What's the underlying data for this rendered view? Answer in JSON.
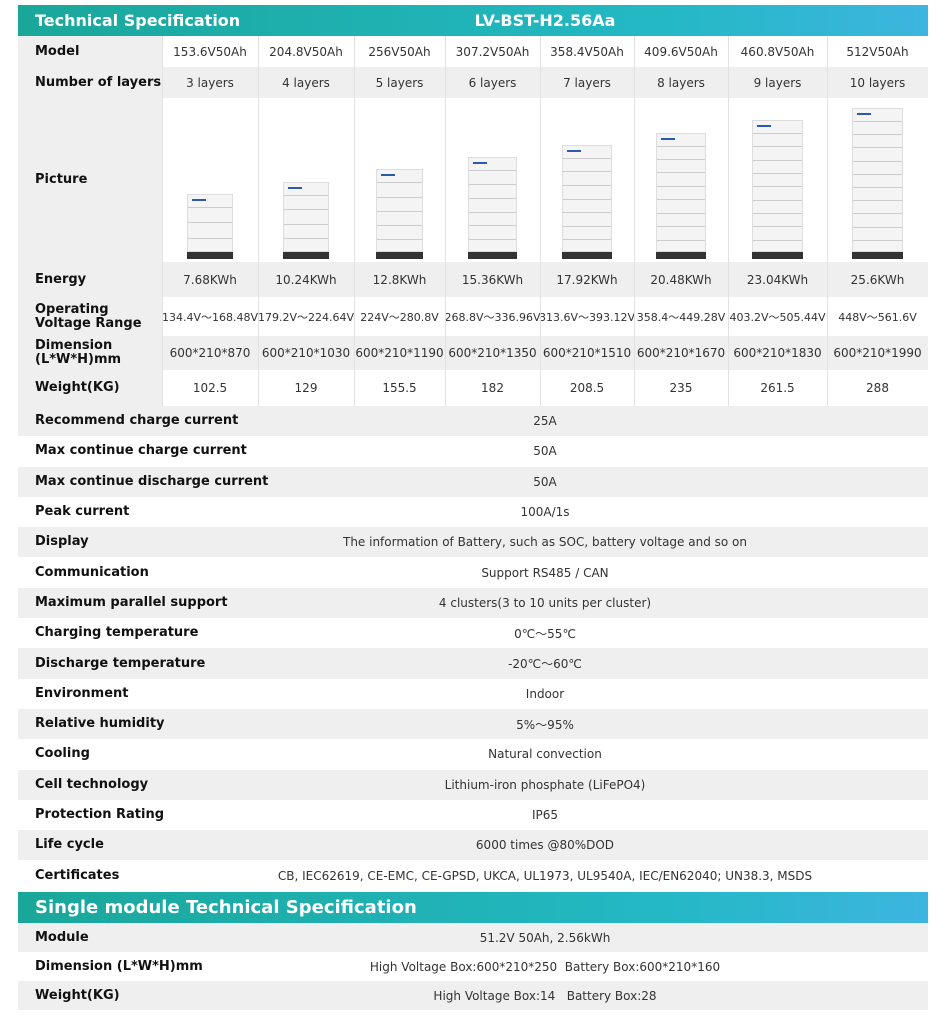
{
  "header": {
    "title": "Technical Specification",
    "model": "LV-BST-H2.56Aa"
  },
  "table": {
    "rows": [
      {
        "label": "Model",
        "values": [
          "153.6V50Ah",
          "204.8V50Ah",
          "256V50Ah",
          "307.2V50Ah",
          "358.4V50Ah",
          "409.6V50Ah",
          "460.8V50Ah",
          "512V50Ah"
        ]
      },
      {
        "label": "Number of layers",
        "values": [
          "3 layers",
          "4 layers",
          "5 layers",
          "6 layers",
          "7 layers",
          "8 layers",
          "9 layers",
          "10 layers"
        ]
      },
      {
        "label": "Picture"
      },
      {
        "label": "Energy",
        "values": [
          "7.68KWh",
          "10.24KWh",
          "12.8KWh",
          "15.36KWh",
          "17.92KWh",
          "20.48KWh",
          "23.04KWh",
          "25.6KWh"
        ]
      },
      {
        "label": "Operating Voltage Range",
        "values": [
          "134.4V～168.48V",
          "179.2V～224.64V",
          "224V～280.8V",
          "268.8V～336.96V",
          "313.6V～393.12V",
          "358.4～449.28V",
          "403.2V～505.44V",
          "448V～561.6V"
        ]
      },
      {
        "label": "Dimension (L*W*H)mm",
        "values": [
          "600*210*870",
          "600*210*1030",
          "600*210*1190",
          "600*210*1350",
          "600*210*1510",
          "600*210*1670",
          "600*210*1830",
          "600*210*1990"
        ]
      },
      {
        "label": "Weight(KG)",
        "values": [
          "102.5",
          "129",
          "155.5",
          "182",
          "208.5",
          "235",
          "261.5",
          "288"
        ]
      }
    ]
  },
  "specs": [
    {
      "label": "Recommend charge current",
      "value": "25A"
    },
    {
      "label": "Max continue charge current",
      "value": "50A"
    },
    {
      "label": "Max continue discharge current",
      "value": "50A"
    },
    {
      "label": "Peak current",
      "value": "100A/1s"
    },
    {
      "label": "Display",
      "value": "The information of Battery, such as SOC, battery voltage and so on"
    },
    {
      "label": "Communication",
      "value": "Support RS485 / CAN"
    },
    {
      "label": "Maximum parallel support",
      "value": "4 clusters(3 to 10 units per cluster)"
    },
    {
      "label": "Charging temperature",
      "value": "0℃～55℃"
    },
    {
      "label": "Discharge temperature",
      "value": "-20℃～60℃"
    },
    {
      "label": "Environment",
      "value": "Indoor"
    },
    {
      "label": "Relative humidity",
      "value": "5%～95%"
    },
    {
      "label": "Cooling",
      "value": "Natural convection"
    },
    {
      "label": "Cell technology",
      "value": "Lithium-iron phosphate (LiFePO4)"
    },
    {
      "label": "Protection Rating",
      "value": "IP65"
    },
    {
      "label": "Life cycle",
      "value": "6000 times @80%DOD"
    },
    {
      "label": "Certificates",
      "value": "CB, IEC62619, CE-EMC, CE-GPSD, UKCA, UL1973, UL9540A, IEC/EN62040; UN38.3, MSDS"
    }
  ],
  "module": {
    "title": "Single module Technical Specification",
    "rows": [
      {
        "label": "Module",
        "value": "51.2V 50Ah, 2.56kWh"
      },
      {
        "label": "Dimension (L*W*H)mm",
        "value": "High Voltage Box:600*210*250  Battery Box:600*210*160"
      },
      {
        "label": "Weight(KG)",
        "value": "High Voltage Box:14   Battery Box:28"
      }
    ]
  }
}
